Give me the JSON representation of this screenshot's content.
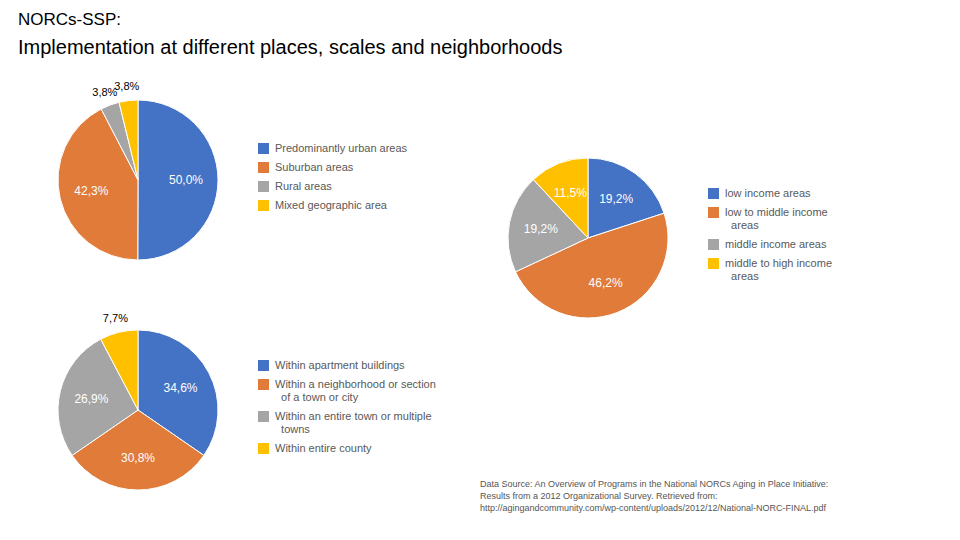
{
  "title": "NORCs-SSP:",
  "subtitle": "Implementation at different places, scales and neighborhoods",
  "annotations": [
    "Data Source: An Overview of Programs in the National NORCs Aging in Place Initiative:\nResults from a 2012 Organizational Survey. Retrieved from:\nhttp://agingandcommunity.com/wp-content/uploads/2012/12/National-NORC-FINAL.pdf"
  ],
  "chart_data": [
    {
      "type": "pie",
      "categories": [
        "Predominantly urban areas",
        "Suburban areas",
        "Rural areas",
        "Mixed geographic area"
      ],
      "values": [
        50.0,
        42.3,
        3.8,
        3.8
      ],
      "value_labels": [
        "50,0%",
        "42,3%",
        "3,8%",
        "3,8%"
      ],
      "colors": [
        "#4472C4",
        "#E07B39",
        "#A5A5A5",
        "#FFC000"
      ],
      "data_labels": true,
      "legend": "right"
    },
    {
      "type": "pie",
      "categories": [
        "low income areas",
        "low to middle income\n  areas",
        "middle income areas",
        "middle to high income\n  areas"
      ],
      "values": [
        19.2,
        46.2,
        19.2,
        11.5
      ],
      "value_labels": [
        "19,2%",
        "46,2%",
        "19,2%",
        "11,5%"
      ],
      "colors": [
        "#4472C4",
        "#E07B39",
        "#A5A5A5",
        "#FFC000"
      ],
      "data_labels": true,
      "legend": "right"
    },
    {
      "type": "pie",
      "categories": [
        "Within apartment buildings",
        "Within a neighborhood or section\n  of a town or city",
        "Within an entire town or multiple\n  towns",
        "Within entire county"
      ],
      "values": [
        34.6,
        30.8,
        26.9,
        7.7
      ],
      "value_labels": [
        "34,6%",
        "30,8%",
        "26,9%",
        "7,7%"
      ],
      "colors": [
        "#4472C4",
        "#E07B39",
        "#A5A5A5",
        "#FFC000"
      ],
      "data_labels": true,
      "legend": "right"
    }
  ]
}
